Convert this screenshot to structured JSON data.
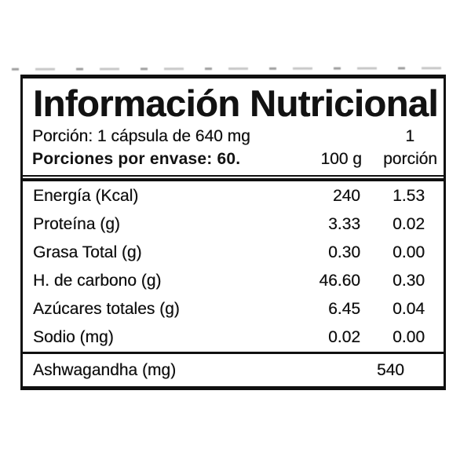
{
  "label": {
    "title": "Información Nutricional",
    "serving": "Porción: 1 cápsula de 640 mg",
    "servings_per_container": "Porciones por envase: 60.",
    "columns": {
      "per_100g": "100 g",
      "per_serving_line1": "1",
      "per_serving_line2": "porción"
    },
    "rows": [
      {
        "name": "Energía (Kcal)",
        "per_100g": "240",
        "per_serving": "1.53"
      },
      {
        "name": "Proteína (g)",
        "per_100g": "3.33",
        "per_serving": "0.02"
      },
      {
        "name": "Grasa Total (g)",
        "per_100g": "0.30",
        "per_serving": "0.00"
      },
      {
        "name": "H. de carbono (g)",
        "per_100g": "46.60",
        "per_serving": "0.30"
      },
      {
        "name": "Azúcares totales (g)",
        "per_100g": "6.45",
        "per_serving": "0.04"
      },
      {
        "name": "Sodio (mg)",
        "per_100g": "0.02",
        "per_serving": "0.00"
      }
    ],
    "footer_row": {
      "name": "Ashwagandha (mg)",
      "per_serving": "540"
    },
    "colors": {
      "ink": "#121212",
      "paper": "#ffffff",
      "border": "#101010"
    }
  }
}
